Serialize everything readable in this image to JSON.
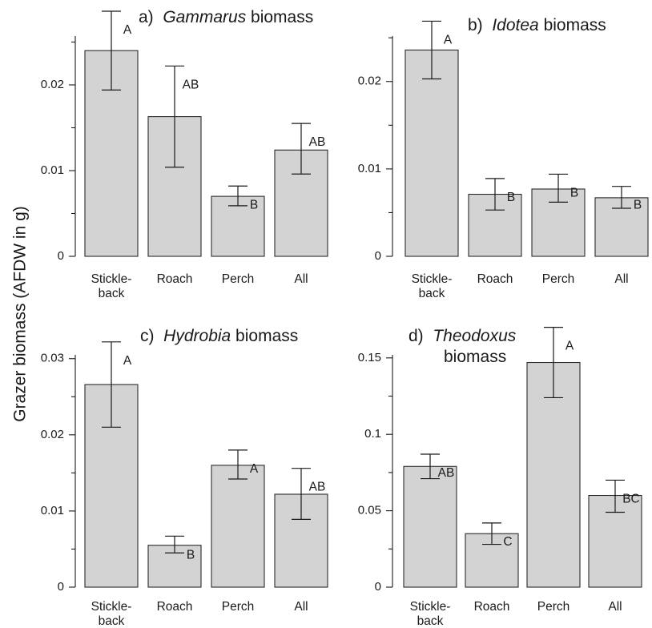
{
  "ylabel": "Grazer biomass (AFDW in g)",
  "chart_data": [
    {
      "type": "bar",
      "panel_label": "a)",
      "title_italic": "Gammarus",
      "title_rest": "biomass",
      "categories": [
        [
          "Stickle-",
          "back"
        ],
        [
          "Roach"
        ],
        [
          "Perch"
        ],
        [
          "All"
        ]
      ],
      "values": [
        0.024,
        0.0163,
        0.007,
        0.0124
      ],
      "error_low": [
        0.0194,
        0.0104,
        0.0059,
        0.0096
      ],
      "error_high": [
        0.0286,
        0.0222,
        0.0082,
        0.0155
      ],
      "significance": [
        "A",
        "AB",
        "B",
        "AB"
      ],
      "ylim": [
        0,
        0.0257
      ],
      "yticks": [
        {
          "v": 0,
          "t": "0"
        },
        {
          "v": 0.01,
          "t": "0.01"
        },
        {
          "v": 0.02,
          "t": "0.02"
        }
      ],
      "minor_yticks": [
        0.005,
        0.015,
        0.025
      ]
    },
    {
      "type": "bar",
      "panel_label": "b)",
      "title_italic": "Idotea",
      "title_rest": "biomass",
      "categories": [
        [
          "Stickle-",
          "back"
        ],
        [
          "Roach"
        ],
        [
          "Perch"
        ],
        [
          "All"
        ]
      ],
      "values": [
        0.0236,
        0.0071,
        0.0077,
        0.0067
      ],
      "error_low": [
        0.0203,
        0.0053,
        0.0062,
        0.0055
      ],
      "error_high": [
        0.0269,
        0.0089,
        0.0094,
        0.008
      ],
      "significance": [
        "A",
        "B",
        "B",
        "B"
      ],
      "ylim": [
        0,
        0.0252
      ],
      "yticks": [
        {
          "v": 0,
          "t": "0"
        },
        {
          "v": 0.01,
          "t": "0.01"
        },
        {
          "v": 0.02,
          "t": "0.02"
        }
      ],
      "minor_yticks": [
        0.005,
        0.015,
        0.025
      ]
    },
    {
      "type": "bar",
      "panel_label": "c)",
      "title_italic": "Hydrobia",
      "title_rest": "biomass",
      "categories": [
        [
          "Stickle-",
          "back"
        ],
        [
          "Roach"
        ],
        [
          "Perch"
        ],
        [
          "All"
        ]
      ],
      "values": [
        0.0266,
        0.0055,
        0.016,
        0.0122
      ],
      "error_low": [
        0.021,
        0.0045,
        0.0142,
        0.0089
      ],
      "error_high": [
        0.0322,
        0.0067,
        0.018,
        0.0156
      ],
      "significance": [
        "A",
        "B",
        "A",
        "AB"
      ],
      "ylim": [
        0,
        0.0305
      ],
      "yticks": [
        {
          "v": 0,
          "t": "0"
        },
        {
          "v": 0.01,
          "t": "0.01"
        },
        {
          "v": 0.02,
          "t": "0.02"
        },
        {
          "v": 0.03,
          "t": "0.03"
        }
      ],
      "minor_yticks": [
        0.005,
        0.015,
        0.025
      ]
    },
    {
      "type": "bar",
      "panel_label": "d)",
      "title_italic": "Theodoxus",
      "title_rest": "biomass",
      "categories": [
        [
          "Stickle-",
          "back"
        ],
        [
          "Roach"
        ],
        [
          "Perch"
        ],
        [
          "All"
        ]
      ],
      "values": [
        0.079,
        0.035,
        0.147,
        0.06
      ],
      "error_low": [
        0.071,
        0.028,
        0.124,
        0.049
      ],
      "error_high": [
        0.087,
        0.042,
        0.17,
        0.07
      ],
      "significance": [
        "AB",
        "C",
        "A",
        "BC"
      ],
      "ylim": [
        0,
        0.152
      ],
      "yticks": [
        {
          "v": 0,
          "t": "0"
        },
        {
          "v": 0.05,
          "t": "0.05"
        },
        {
          "v": 0.1,
          "t": "0.1"
        },
        {
          "v": 0.15,
          "t": "0.15"
        }
      ],
      "minor_yticks": [
        0.025,
        0.075,
        0.125
      ]
    }
  ]
}
